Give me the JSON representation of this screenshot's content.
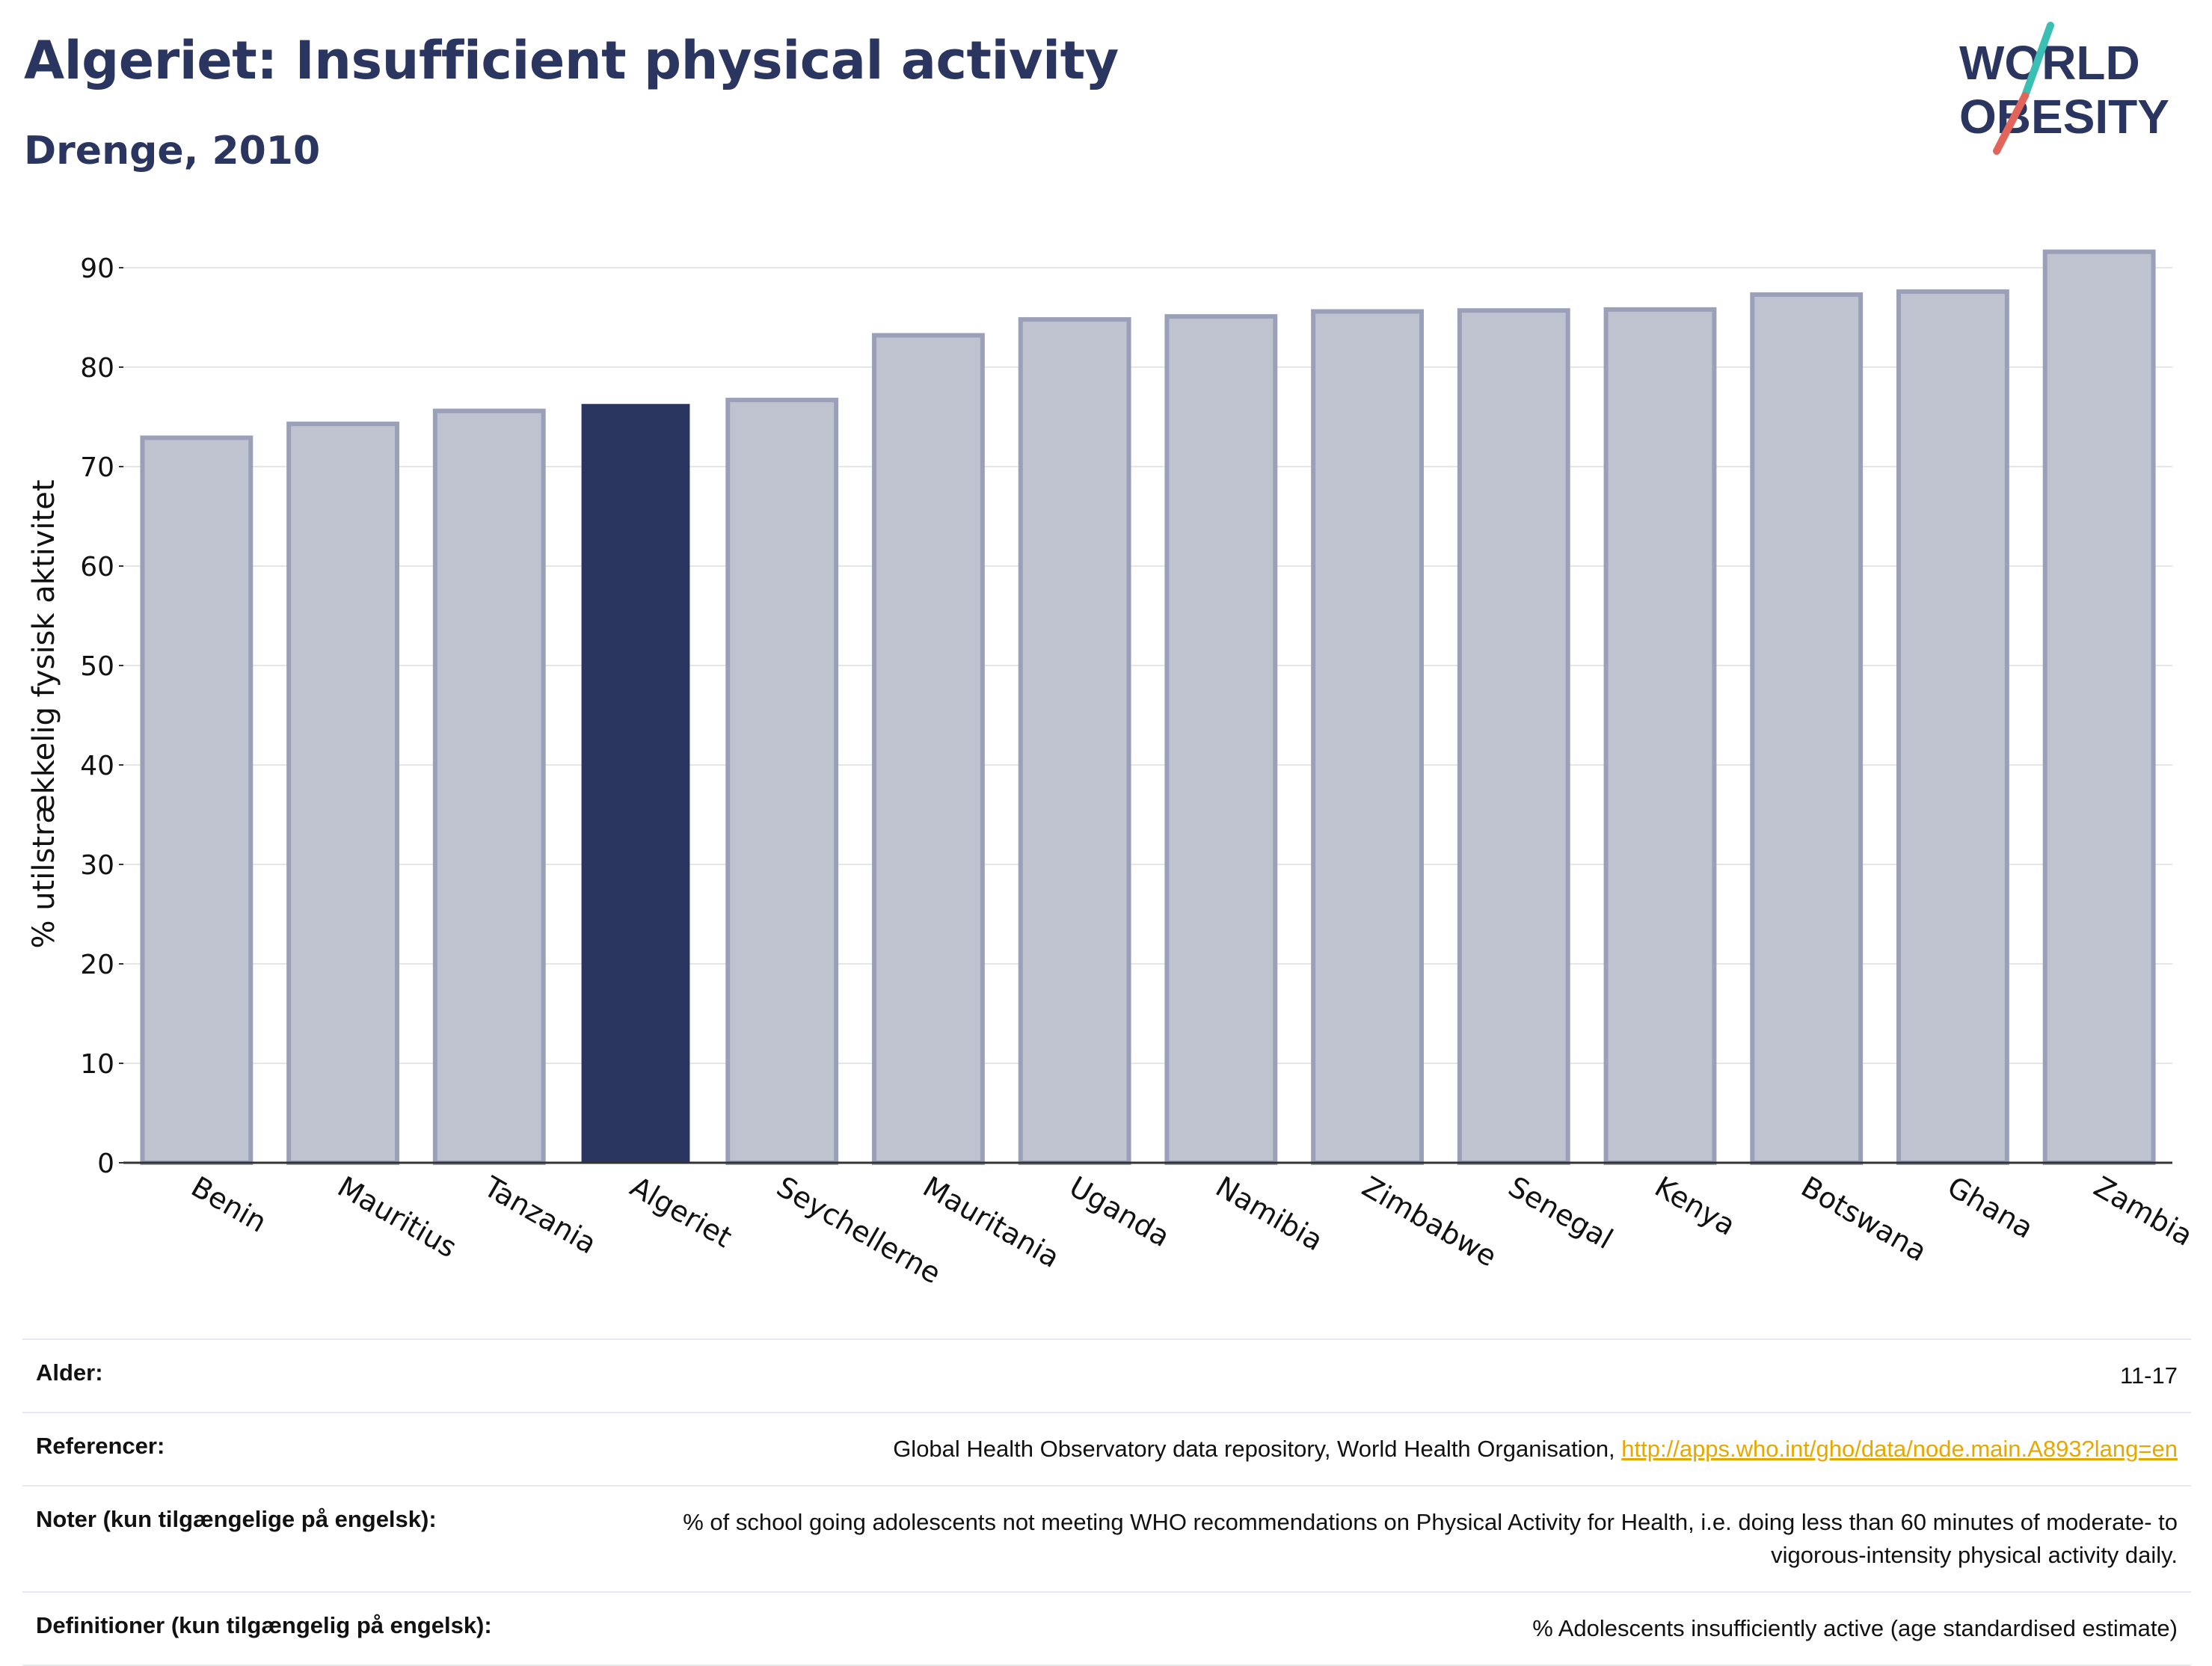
{
  "header": {
    "title": "Algeriet: Insufficient physical activity",
    "subtitle": "Drenge, 2010"
  },
  "logo": {
    "line1": "WORLD",
    "line2": "OBESITY",
    "accent_teal": "#3bbfb3",
    "accent_red": "#e2645a"
  },
  "colors": {
    "highlight": "#2a3560",
    "bar_fill": "#bfc3d0",
    "bar_stroke": "#9aa0b8",
    "axis": "#333333",
    "grid": "#e6e6ea"
  },
  "chart_data": {
    "type": "bar",
    "ylabel": "% utilstrækkelig fysisk aktivitet",
    "xlabel": "",
    "ylim": [
      0,
      95
    ],
    "yticks": [
      0,
      10,
      20,
      30,
      40,
      50,
      60,
      70,
      80,
      90
    ],
    "grid": true,
    "highlight": "Algeriet",
    "categories": [
      "Benin",
      "Mauritius",
      "Tanzania",
      "Algeriet",
      "Seychellerne",
      "Mauritania",
      "Uganda",
      "Namibia",
      "Zimbabwe",
      "Senegal",
      "Kenya",
      "Botswana",
      "Ghana",
      "Zambia"
    ],
    "values": [
      72.9,
      74.3,
      75.6,
      76.3,
      76.7,
      83.2,
      84.8,
      85.1,
      85.6,
      85.7,
      85.8,
      87.3,
      87.6,
      91.6
    ]
  },
  "footer": {
    "rows": [
      {
        "label": "Alder:",
        "value": "11-17"
      },
      {
        "label": "Referencer:",
        "value": "Global Health Observatory data repository, World Health Organisation, ",
        "link": "http://apps.who.int/gho/data/node.main.A893?lang=en"
      },
      {
        "label": "Noter (kun tilgængelige på engelsk):",
        "value": "% of school going adolescents not meeting WHO recommendations on Physical Activity for Health, i.e. doing less than 60 minutes of moderate- to vigorous-intensity physical activity daily."
      },
      {
        "label": "Definitioner (kun tilgængelig på engelsk):",
        "value": "% Adolescents insufficiently active (age standardised estimate)"
      }
    ]
  }
}
